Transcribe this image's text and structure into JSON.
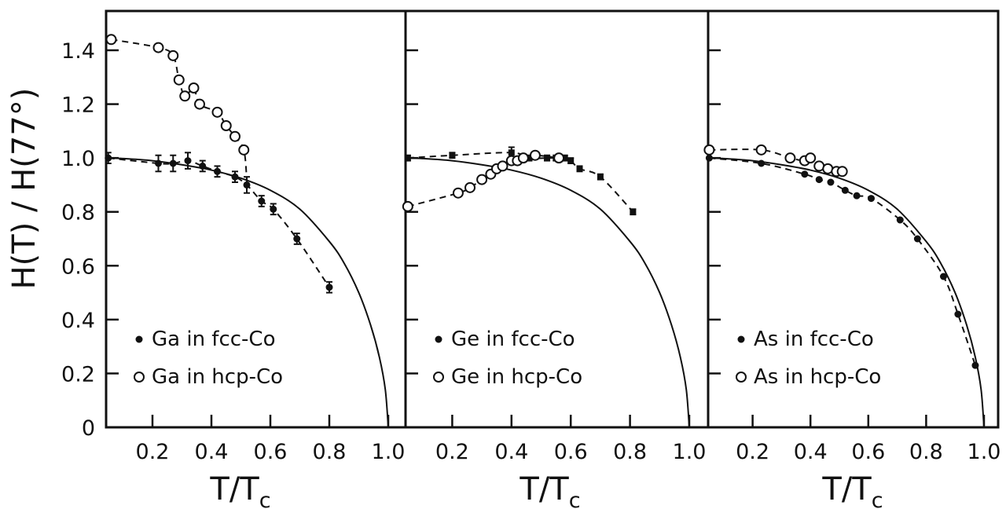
{
  "figure": {
    "ylabel": "H(T) / H(77°)",
    "xlabel_main": "T/T",
    "xlabel_sub": "c"
  },
  "colors": {
    "ink": "#111111",
    "background": "#ffffff"
  },
  "chart_data": [
    {
      "type": "scatter",
      "panel": "left",
      "xlim": [
        0,
        1.0
      ],
      "ylim": [
        0,
        1.5
      ],
      "x_ticks": [
        "0.2",
        "0.4",
        "0.6",
        "0.8",
        "1.0"
      ],
      "y_ticks": [
        "0",
        "0.2",
        "0.4",
        "0.6",
        "0.8",
        "1.0",
        "1.2",
        "1.4"
      ],
      "xlabel": "T/Tc",
      "ylabel": "H(T) / H(77°)",
      "legend_placement": "bottom-left",
      "series": [
        {
          "name": "Ga in fcc-Co",
          "marker": "filled-circle-errorbar",
          "x": [
            0.05,
            0.22,
            0.27,
            0.32,
            0.37,
            0.42,
            0.48,
            0.52,
            0.57,
            0.61,
            0.69,
            0.8
          ],
          "y": [
            1.0,
            0.98,
            0.98,
            0.99,
            0.97,
            0.95,
            0.93,
            0.9,
            0.84,
            0.81,
            0.7,
            0.52
          ],
          "err": [
            0.02,
            0.03,
            0.03,
            0.03,
            0.02,
            0.02,
            0.02,
            0.03,
            0.02,
            0.02,
            0.02,
            0.02
          ]
        },
        {
          "name": "Ga in hcp-Co",
          "marker": "open-circle",
          "x": [
            0.06,
            0.22,
            0.27,
            0.29,
            0.31,
            0.34,
            0.36,
            0.42,
            0.45,
            0.48,
            0.51
          ],
          "y": [
            1.44,
            1.41,
            1.38,
            1.29,
            1.23,
            1.26,
            1.2,
            1.17,
            1.12,
            1.08,
            1.03
          ]
        }
      ]
    },
    {
      "type": "scatter",
      "panel": "middle",
      "xlim": [
        0,
        1.0
      ],
      "ylim": [
        0,
        1.5
      ],
      "x_ticks": [
        "0.2",
        "0.4",
        "0.6",
        "0.8",
        "1.0"
      ],
      "xlabel": "T/Tc",
      "legend_placement": "bottom-left",
      "series": [
        {
          "name": "Ge in fcc-Co",
          "marker": "filled-square-errorbar",
          "x": [
            0.05,
            0.2,
            0.4,
            0.46,
            0.52,
            0.55,
            0.58,
            0.6,
            0.63,
            0.7,
            0.81
          ],
          "y": [
            1.0,
            1.01,
            1.02,
            1.0,
            1.0,
            1.0,
            1.0,
            0.99,
            0.96,
            0.93,
            0.8
          ],
          "err": [
            0.01,
            0.01,
            0.02,
            0.01,
            0.01,
            0.01,
            0.01,
            0.01,
            0.01,
            0.01,
            0.01
          ]
        },
        {
          "name": "Ge in hcp-Co",
          "marker": "open-circle",
          "x": [
            0.05,
            0.22,
            0.26,
            0.3,
            0.33,
            0.35,
            0.37,
            0.4,
            0.42,
            0.44,
            0.48,
            0.56
          ],
          "y": [
            0.82,
            0.87,
            0.89,
            0.92,
            0.94,
            0.96,
            0.97,
            0.99,
            0.99,
            1.0,
            1.01,
            1.0
          ]
        }
      ]
    },
    {
      "type": "scatter",
      "panel": "right",
      "xlim": [
        0,
        1.0
      ],
      "ylim": [
        0,
        1.5
      ],
      "x_ticks": [
        "0.2",
        "0.4",
        "0.6",
        "0.8",
        "1.0"
      ],
      "xlabel": "T/Tc",
      "legend_placement": "bottom-left",
      "series": [
        {
          "name": "As in fcc-Co",
          "marker": "filled-circle",
          "x": [
            0.05,
            0.23,
            0.38,
            0.43,
            0.47,
            0.52,
            0.56,
            0.61,
            0.71,
            0.77,
            0.86,
            0.91,
            0.97
          ],
          "y": [
            1.0,
            0.98,
            0.94,
            0.92,
            0.91,
            0.88,
            0.86,
            0.85,
            0.77,
            0.7,
            0.56,
            0.42,
            0.23
          ]
        },
        {
          "name": "As in hcp-Co",
          "marker": "open-circle",
          "x": [
            0.05,
            0.23,
            0.33,
            0.38,
            0.4,
            0.43,
            0.46,
            0.49,
            0.51
          ],
          "y": [
            1.03,
            1.03,
            1.0,
            0.99,
            1.0,
            0.97,
            0.96,
            0.95,
            0.95
          ]
        }
      ]
    }
  ],
  "reference_curve": {
    "description": "solid theory curve in each panel",
    "x": [
      0.0,
      0.1,
      0.2,
      0.3,
      0.4,
      0.5,
      0.6,
      0.7,
      0.8,
      0.85,
      0.9,
      0.94,
      0.97,
      0.99,
      1.0
    ],
    "y": [
      1.0,
      0.998,
      0.99,
      0.975,
      0.955,
      0.925,
      0.88,
      0.81,
      0.69,
      0.61,
      0.5,
      0.38,
      0.26,
      0.14,
      0.0
    ]
  }
}
